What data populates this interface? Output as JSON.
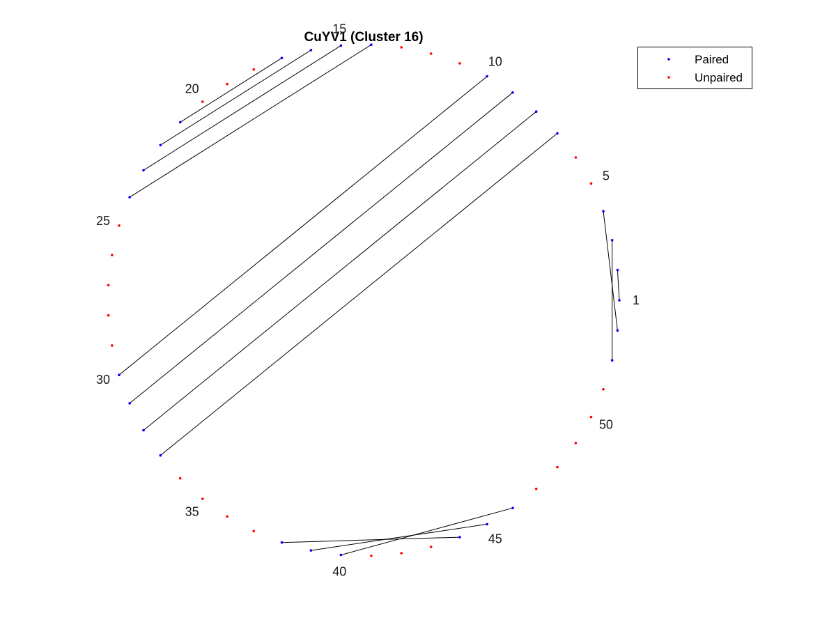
{
  "chart_data": {
    "type": "arc-diagram-circular",
    "title": "CuYV1 (Cluster 16)",
    "n_positions": 53,
    "index_labels": [
      1,
      5,
      10,
      15,
      20,
      25,
      30,
      35,
      40,
      45,
      50
    ],
    "pairs": [
      [
        1,
        2
      ],
      [
        3,
        52
      ],
      [
        4,
        53
      ],
      [
        7,
        33
      ],
      [
        8,
        32
      ],
      [
        9,
        31
      ],
      [
        10,
        30
      ],
      [
        14,
        24
      ],
      [
        15,
        23
      ],
      [
        16,
        22
      ],
      [
        17,
        21
      ],
      [
        38,
        44
      ],
      [
        39,
        45
      ],
      [
        40,
        46
      ]
    ],
    "paired_positions": [
      1,
      2,
      3,
      4,
      7,
      8,
      9,
      10,
      14,
      15,
      16,
      17,
      21,
      22,
      23,
      24,
      30,
      31,
      32,
      33,
      38,
      39,
      40,
      44,
      45,
      46,
      52,
      53
    ],
    "unpaired_positions": [
      5,
      6,
      11,
      12,
      13,
      18,
      19,
      20,
      25,
      26,
      27,
      28,
      29,
      34,
      35,
      36,
      37,
      41,
      42,
      43,
      47,
      48,
      49,
      50,
      51
    ],
    "legend": {
      "placement": "top-right",
      "entries": [
        {
          "name": "Paired",
          "color": "#0000ff"
        },
        {
          "name": "Unpaired",
          "color": "#ff0000"
        }
      ]
    },
    "colors": {
      "paired": "#0000ff",
      "unpaired": "#ff0000",
      "pair_line": "#000000"
    }
  }
}
